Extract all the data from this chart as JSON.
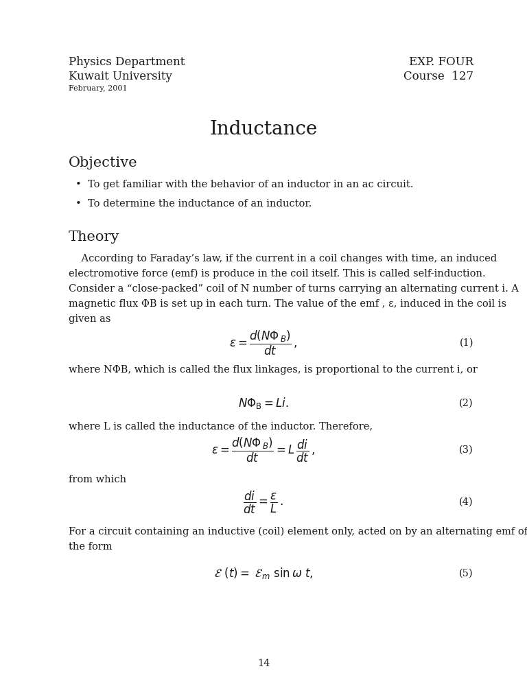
{
  "bg_color": "#ffffff",
  "text_color": "#1a1a1a",
  "header_left_line1": "Physics Department",
  "header_left_line2": "Kuwait University",
  "header_left_line3": "February, 2001",
  "header_right_line1": "EXP. FOUR",
  "header_right_line2": "Course  127",
  "title": "Inductance",
  "section1": "Objective",
  "bullet1": "•  To get familiar with the behavior of an inductor in an ac circuit.",
  "bullet2": "•  To determine the inductance of an inductor.",
  "section2": "Theory",
  "para1": "    According to Faraday’s law, if the current in a coil changes with time, an induced",
  "para2": "electromotive force (emf) is produce in the coil itself. This is called self-induction.",
  "para3": "Consider a “close-packed” coil of N number of turns carrying an alternating current i. A",
  "para4": "magnetic flux ΦB is set up in each turn. The value of the emf , ε, induced in the coil is",
  "para5": "given as",
  "eq1_label": "(1)",
  "eq2_label": "(2)",
  "eq3_label": "(3)",
  "eq4_label": "(4)",
  "eq5_label": "(5)",
  "after_eq1": "where NΦB, which is called the flux linkages, is proportional to the current i, or",
  "after_eq2": "where L is called the inductance of the inductor. Therefore,",
  "after_eq3": "from which",
  "para_eq5_1": "For a circuit containing an inductive (coil) element only, acted on by an alternating emf of",
  "para_eq5_2": "the form",
  "page_number": "14"
}
